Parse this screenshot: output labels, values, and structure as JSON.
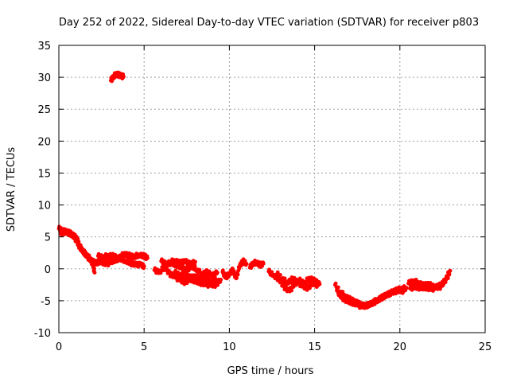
{
  "chart_data": {
    "type": "scatter",
    "title": "Day 252 of 2022, Sidereal Day-to-day VTEC variation (SDTVAR) for receiver p803",
    "xlabel": "GPS time / hours",
    "ylabel": "SDTVAR / TECUs",
    "xlim": [
      0,
      25
    ],
    "ylim": [
      -10,
      35
    ],
    "xticks": [
      0,
      5,
      10,
      15,
      20,
      25
    ],
    "yticks": [
      -10,
      -5,
      0,
      5,
      10,
      15,
      20,
      25,
      30,
      35
    ],
    "grid": true,
    "marker_color": "#ff0000",
    "series": [
      {
        "name": "SDTVAR",
        "segments": [
          {
            "x": [
              3.05,
              3.2,
              3.35,
              3.5,
              3.65,
              3.8
            ],
            "y": [
              29.5,
              30.1,
              30.5,
              30.4,
              30.2,
              30.1
            ]
          },
          {
            "x": [
              0.0,
              0.2,
              0.4,
              0.6,
              0.8,
              1.0,
              1.1,
              1.2,
              1.35,
              1.5,
              1.65,
              1.8,
              2.0,
              2.2,
              2.4,
              2.6,
              2.8,
              3.0,
              3.3,
              3.6,
              3.9,
              4.2,
              4.5,
              4.8,
              5.0
            ],
            "y": [
              6.3,
              6.0,
              5.8,
              5.6,
              5.3,
              4.9,
              4.4,
              3.7,
              3.0,
              2.5,
              2.0,
              1.5,
              1.1,
              0.9,
              1.2,
              1.0,
              0.8,
              0.9,
              1.4,
              1.6,
              1.3,
              0.9,
              0.7,
              0.6,
              0.4
            ]
          },
          {
            "x": [
              0.1,
              0.3,
              0.5,
              0.7,
              0.9,
              1.05,
              1.2,
              1.4,
              1.6,
              1.8,
              2.0,
              2.1
            ],
            "y": [
              5.5,
              5.7,
              5.9,
              5.5,
              5.0,
              4.3,
              3.5,
              2.8,
              2.2,
              1.7,
              0.6,
              -0.6
            ]
          },
          {
            "x": [
              2.3,
              2.6,
              2.9,
              3.2,
              3.5,
              3.8,
              4.1,
              4.4,
              4.7,
              5.0,
              5.2
            ],
            "y": [
              2.0,
              1.8,
              2.1,
              2.0,
              1.6,
              2.3,
              2.1,
              1.9,
              2.2,
              2.0,
              1.7
            ]
          },
          {
            "x": [
              5.6,
              5.9,
              6.2,
              6.5,
              6.8,
              7.1,
              7.4,
              7.7,
              8.0,
              8.3,
              8.6,
              8.9,
              9.2,
              9.5
            ],
            "y": [
              -0.2,
              -0.5,
              0.3,
              -0.8,
              -1.2,
              -1.8,
              -2.1,
              -1.6,
              -1.9,
              -2.2,
              -2.4,
              -2.6,
              -2.5,
              -1.7
            ]
          },
          {
            "x": [
              6.0,
              6.3,
              6.6,
              6.9,
              7.2,
              7.5,
              7.8,
              8.1,
              8.4,
              8.7,
              9.0,
              9.3
            ],
            "y": [
              1.2,
              0.8,
              0.9,
              0.6,
              0.2,
              -0.3,
              0.5,
              -0.2,
              -0.8,
              -0.5,
              -1.1,
              -0.6
            ]
          },
          {
            "x": [
              6.2,
              6.5,
              6.8,
              7.1,
              7.4,
              7.7,
              8.0
            ],
            "y": [
              0.4,
              1.0,
              1.3,
              0.9,
              1.2,
              0.7,
              1.1
            ]
          },
          {
            "x": [
              6.8,
              7.1,
              7.4,
              7.7,
              8.0,
              8.3,
              8.6,
              8.9,
              9.2
            ],
            "y": [
              -0.6,
              -1.0,
              -0.8,
              -1.4,
              -1.2,
              -1.8,
              -1.5,
              -2.0,
              -1.6
            ]
          },
          {
            "x": [
              9.6,
              9.8,
              10.0,
              10.2,
              10.4,
              10.6,
              10.8,
              11.0
            ],
            "y": [
              -0.5,
              -1.3,
              -0.8,
              -0.2,
              -1.5,
              0.4,
              1.2,
              0.8
            ]
          },
          {
            "x": [
              11.2,
              11.4,
              11.6,
              11.8,
              12.0
            ],
            "y": [
              0.2,
              0.9,
              1.0,
              0.6,
              0.8
            ]
          },
          {
            "x": [
              12.3,
              12.6,
              12.9,
              13.2,
              13.5,
              13.8,
              14.1,
              14.4,
              14.7,
              15.0,
              15.3
            ],
            "y": [
              -0.4,
              -1.0,
              -1.6,
              -2.8,
              -3.5,
              -2.6,
              -1.8,
              -2.3,
              -1.4,
              -1.9,
              -2.4
            ]
          },
          {
            "x": [
              12.8,
              13.1,
              13.4,
              13.7,
              14.0,
              14.3,
              14.6,
              14.9,
              15.2
            ],
            "y": [
              -0.8,
              -1.5,
              -2.2,
              -1.6,
              -2.0,
              -2.8,
              -3.0,
              -2.2,
              -2.6
            ]
          },
          {
            "x": [
              16.2,
              16.5,
              16.8,
              17.1,
              17.4,
              17.7,
              18.0,
              18.3,
              18.6,
              18.9,
              19.2,
              19.5,
              19.8,
              20.1,
              20.4
            ],
            "y": [
              -2.5,
              -3.6,
              -4.3,
              -4.8,
              -5.2,
              -5.6,
              -5.8,
              -5.5,
              -5.1,
              -4.6,
              -4.1,
              -3.8,
              -3.5,
              -3.1,
              -3.0
            ]
          },
          {
            "x": [
              16.3,
              16.6,
              16.9,
              17.2,
              17.5,
              17.8,
              18.1,
              18.4,
              18.7,
              19.0,
              19.3,
              19.6,
              19.9,
              20.2
            ],
            "y": [
              -3.4,
              -4.5,
              -5.0,
              -5.3,
              -5.6,
              -6.0,
              -5.7,
              -5.3,
              -4.8,
              -4.4,
              -4.0,
              -3.6,
              -3.2,
              -3.6
            ]
          },
          {
            "x": [
              20.5,
              20.8,
              21.1,
              21.4,
              21.7,
              22.0,
              22.3,
              22.6,
              22.9
            ],
            "y": [
              -2.3,
              -1.9,
              -2.2,
              -2.6,
              -2.4,
              -2.9,
              -2.7,
              -2.1,
              -0.8
            ]
          },
          {
            "x": [
              20.6,
              20.9,
              21.2,
              21.5,
              21.8,
              22.1,
              22.4,
              22.7,
              22.95
            ],
            "y": [
              -3.1,
              -2.8,
              -3.0,
              -2.9,
              -3.2,
              -3.0,
              -2.8,
              -1.5,
              -0.3
            ]
          }
        ]
      }
    ]
  }
}
